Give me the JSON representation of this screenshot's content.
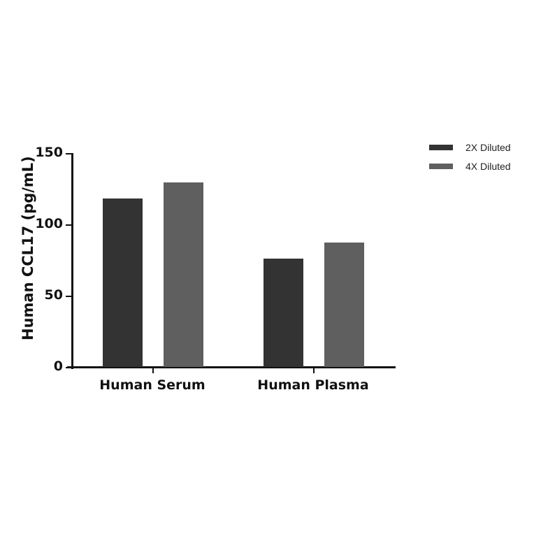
{
  "chart_data": {
    "type": "bar",
    "title": "",
    "xlabel": "",
    "ylabel": "Human CCL17  (pg/mL)",
    "categories": [
      "Human Serum",
      "Human Plasma"
    ],
    "series": [
      {
        "name": "2X Diluted",
        "color": "#333333",
        "values": [
          118.5,
          76
        ]
      },
      {
        "name": "4X Diluted",
        "color": "#5f5f5f",
        "values": [
          130,
          87.5
        ]
      }
    ],
    "ylim": [
      0,
      150
    ],
    "yticks": [
      "0",
      "50",
      "100",
      "150"
    ],
    "grid": false,
    "legend_position": "right"
  },
  "legend": {
    "items": [
      {
        "label": "2X Diluted",
        "color": "#333333"
      },
      {
        "label": "4X Diluted",
        "color": "#5f5f5f"
      }
    ]
  }
}
